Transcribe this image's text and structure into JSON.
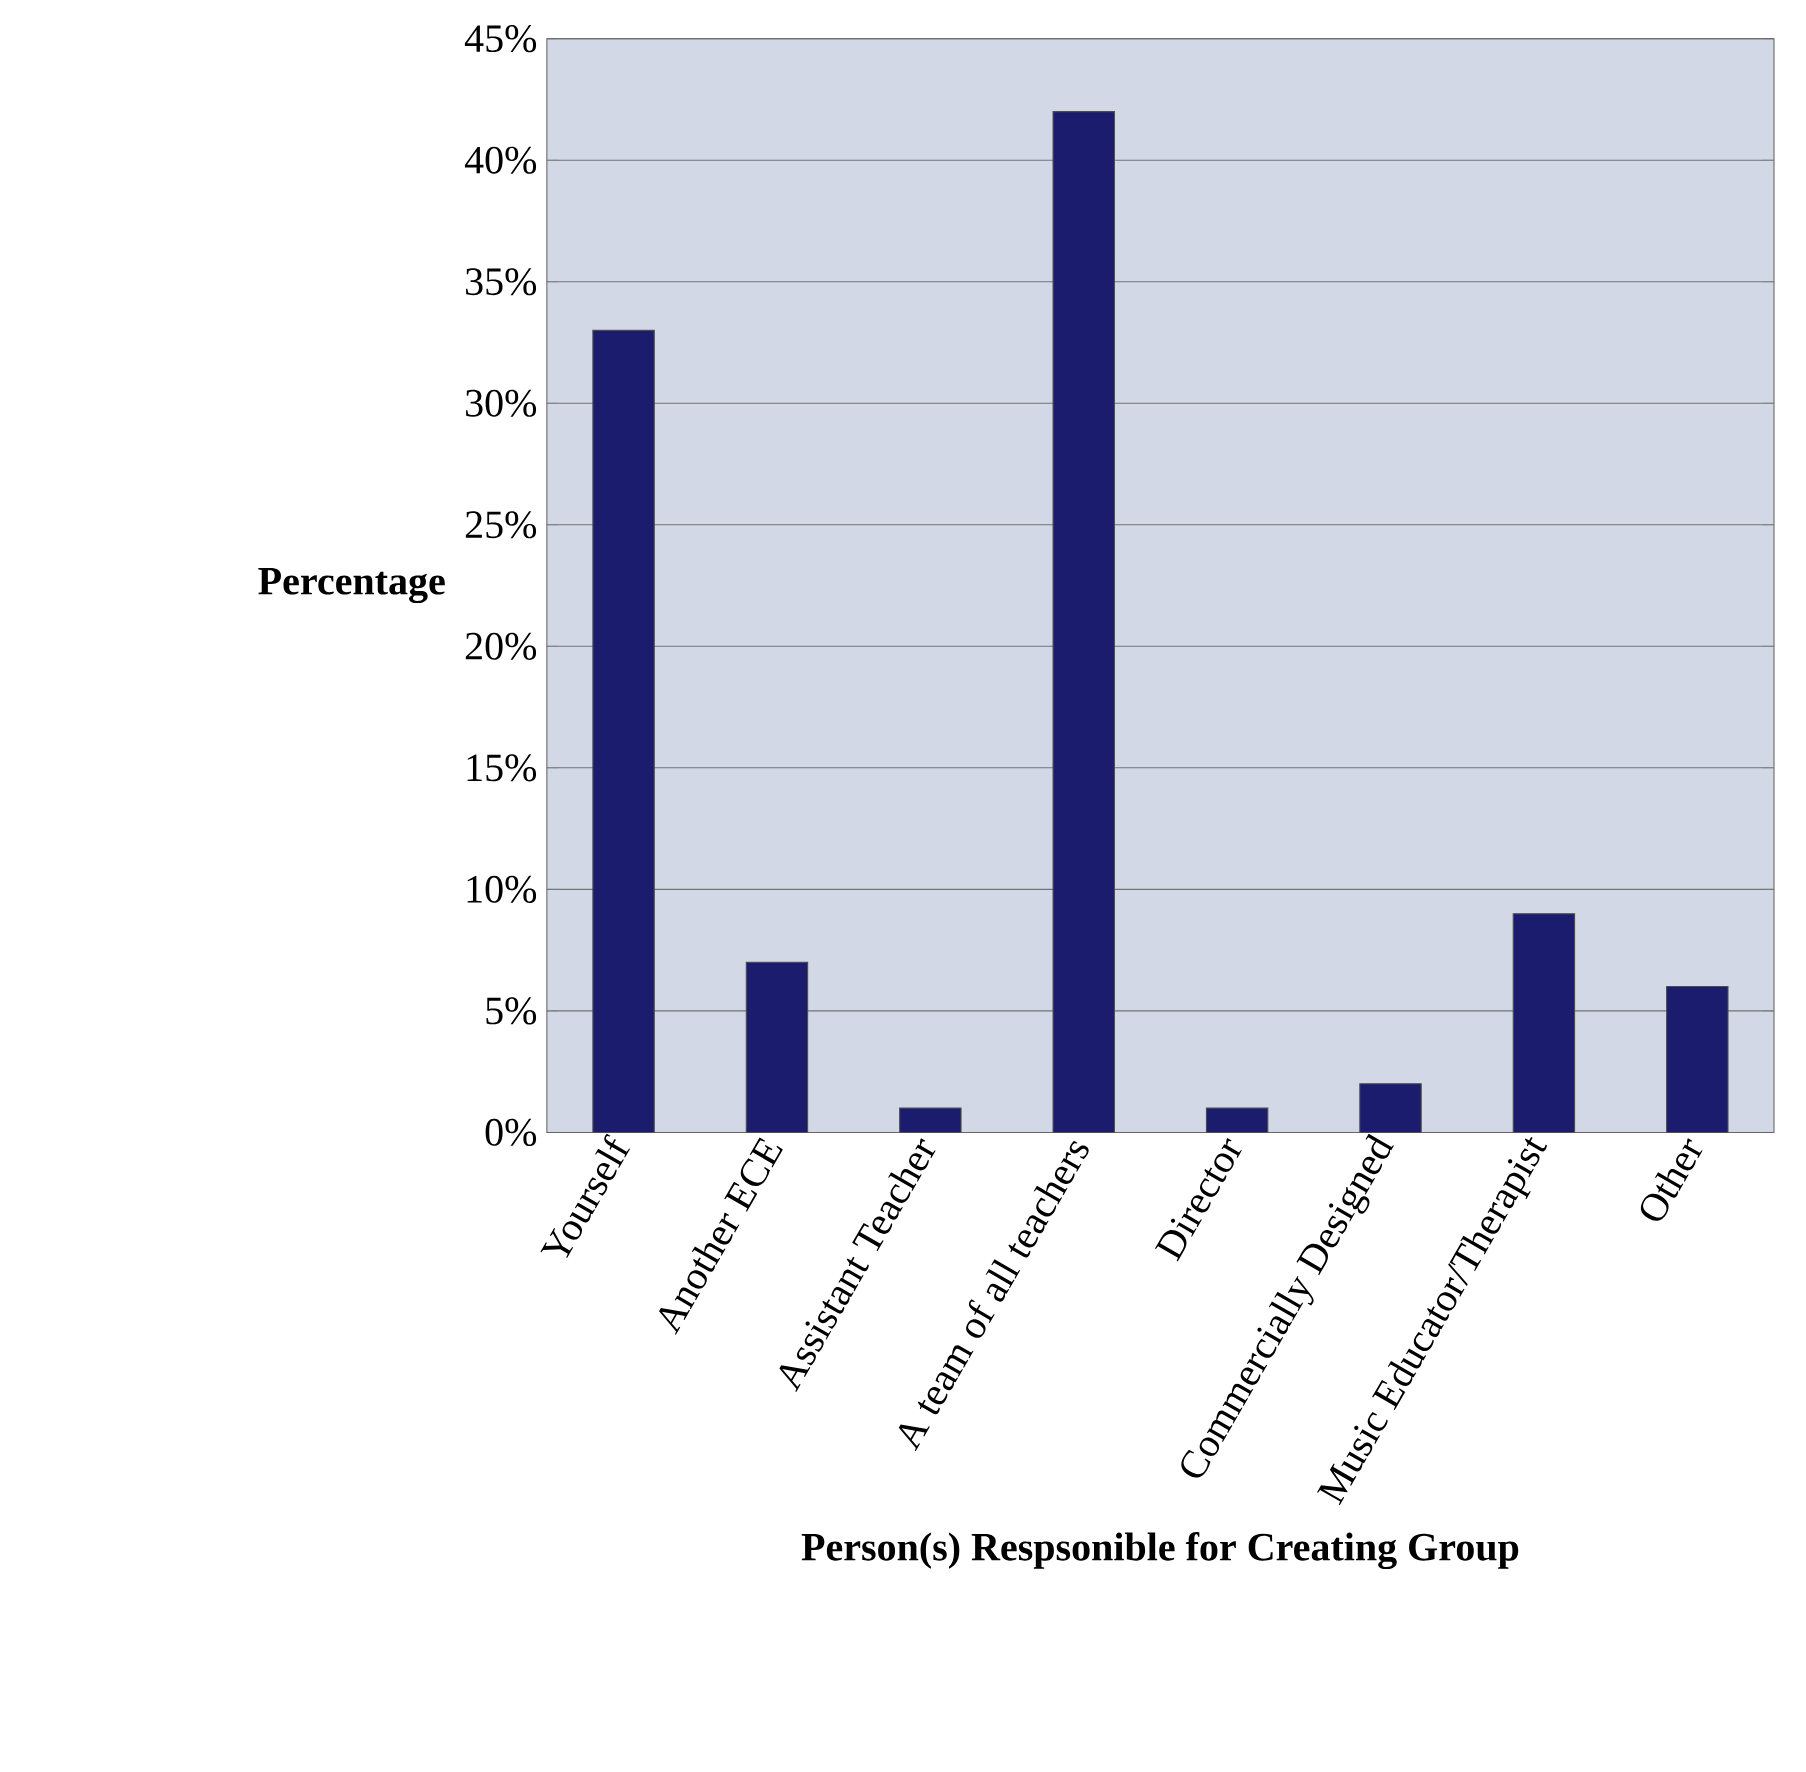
{
  "chart_data": {
    "type": "bar",
    "xlabel": "Person(s) Respsonible for Creating Group",
    "ylabel": "Percentage",
    "categories": [
      "Yourself",
      "Another ECE",
      "Assistant Teacher",
      "A team of all teachers",
      "Director",
      "Commercially Designed",
      "Music Educator/Therapist",
      "Other"
    ],
    "values": [
      33,
      7,
      1,
      42,
      1,
      2,
      9,
      6
    ],
    "color": "#1c1c6e",
    "ylim": [
      0,
      45
    ],
    "yticks": [
      {
        "value": 0,
        "label": "0%"
      },
      {
        "value": 5,
        "label": "5%"
      },
      {
        "value": 10,
        "label": "10%"
      },
      {
        "value": 15,
        "label": "15%"
      },
      {
        "value": 20,
        "label": "20%"
      },
      {
        "value": 25,
        "label": "25%"
      },
      {
        "value": 30,
        "label": "30%"
      },
      {
        "value": 35,
        "label": "35%"
      },
      {
        "value": 40,
        "label": "40%"
      },
      {
        "value": 45,
        "label": "45%"
      }
    ],
    "grid": "y"
  }
}
